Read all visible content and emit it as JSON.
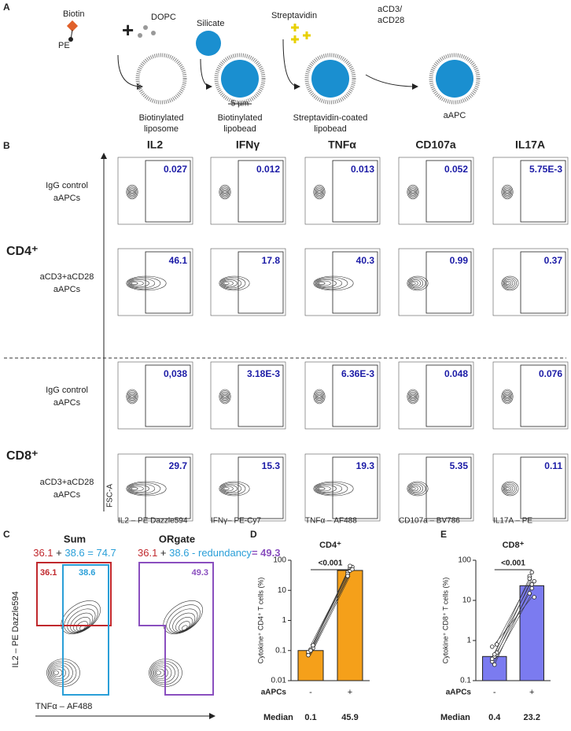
{
  "panel_a": {
    "label": "A",
    "biotin": "Biotin",
    "pe": "PE",
    "dopc": "DOPC",
    "silicate": "Silicate",
    "streptavidin": "Streptavidin",
    "antibodies": [
      "aCD3/",
      "aCD28"
    ],
    "scale": "5 µm",
    "steps": [
      [
        "Biotinylated",
        "liposome"
      ],
      [
        "Biotinylated",
        "lipobead"
      ],
      [
        "Streptavidin-coated",
        "lipobead"
      ],
      [
        "aAPC"
      ]
    ]
  },
  "panel_b": {
    "label": "B",
    "columns": [
      "IL2",
      "IFNγ",
      "TNFα",
      "CD107a",
      "IL17A"
    ],
    "axis_y": "FSC-A",
    "x_labels": [
      "IL2 – PE Dazzle594",
      "IFNγ– PE-Cy7",
      "TNFα – AF488",
      "CD107a – BV786",
      "IL17A – PE"
    ],
    "groups": [
      {
        "name": "CD4⁺",
        "rows": [
          {
            "condition": [
              "IgG control",
              "aAPCs"
            ],
            "values": [
              "0.027",
              "0.012",
              "0.013",
              "0.052",
              "5.75E-3"
            ]
          },
          {
            "condition": [
              "aCD3+aCD28",
              "aAPCs"
            ],
            "values": [
              "46.1",
              "17.8",
              "40.3",
              "0.99",
              "0.37"
            ]
          }
        ]
      },
      {
        "name": "CD8⁺",
        "rows": [
          {
            "condition": [
              "IgG control",
              "aAPCs"
            ],
            "values": [
              "0,038",
              "3.18E-3",
              "6.36E-3",
              "0.048",
              "0.076"
            ]
          },
          {
            "condition": [
              "aCD3+aCD28",
              "aAPCs"
            ],
            "values": [
              "29.7",
              "15.3",
              "19.3",
              "5.35",
              "0.11"
            ]
          }
        ]
      }
    ]
  },
  "panel_c": {
    "label": "C",
    "y_label": "IL2 – PE Dazzle594",
    "x_label": "TNFα – AF488",
    "plots": [
      {
        "title": "Sum",
        "equation": [
          {
            "text": "36.1",
            "color": "#c0282d"
          },
          {
            "text": " + ",
            "color": "#222222"
          },
          {
            "text": "38.6 = 74.7",
            "color": "#2a9fd8"
          }
        ],
        "gates": [
          {
            "text": "36.1",
            "color": "#c0282d"
          },
          {
            "text": "38.6",
            "color": "#2a9fd8"
          }
        ]
      },
      {
        "title": "ORgate",
        "equation": [
          {
            "text": "36.1",
            "color": "#c0282d"
          },
          {
            "text": " + ",
            "color": "#222222"
          },
          {
            "text": "38.6 - redundancy",
            "color": "#2a9fd8"
          },
          {
            "text": "= 49.3",
            "color": "#8a4fbf"
          }
        ],
        "gates": [
          {
            "text": "49.3",
            "color": "#8a4fbf"
          }
        ]
      }
    ]
  },
  "chart_data": [
    {
      "type": "bar",
      "panel_label": "D",
      "title": "CD4⁺",
      "y_label": "Cytokine⁺ CD4⁺ T cells (%)",
      "x_label": "aAPCs",
      "categories": [
        "-",
        "+"
      ],
      "values": [
        0.1,
        45.9
      ],
      "color": "#f5a01a",
      "ylim": [
        0.01,
        100
      ],
      "yticks": [
        0.01,
        0.1,
        1,
        10,
        100
      ],
      "log": true,
      "p_value": "<0.001",
      "median_label": "Median",
      "points": [
        [
          0.08,
          0.1,
          0.12,
          0.09,
          0.11,
          0.15,
          0.07,
          0.1
        ],
        [
          40,
          55,
          60,
          35,
          45,
          50,
          30,
          65
        ]
      ]
    },
    {
      "type": "bar",
      "panel_label": "E",
      "title": "CD8⁺",
      "y_label": "Cytokine⁺ CD8⁺ T cells (%)",
      "x_label": "aAPCs",
      "categories": [
        "-",
        "+"
      ],
      "values": [
        0.4,
        23.2
      ],
      "color": "#7b7bf0",
      "ylim": [
        0.1,
        100
      ],
      "yticks": [
        0.1,
        1,
        10,
        100
      ],
      "log": true,
      "p_value": "<0.001",
      "median_label": "Median",
      "points": [
        [
          0.3,
          0.4,
          0.5,
          0.7,
          0.25,
          0.8,
          0.35,
          0.45
        ],
        [
          15,
          20,
          30,
          40,
          25,
          12,
          35,
          50
        ]
      ]
    }
  ]
}
